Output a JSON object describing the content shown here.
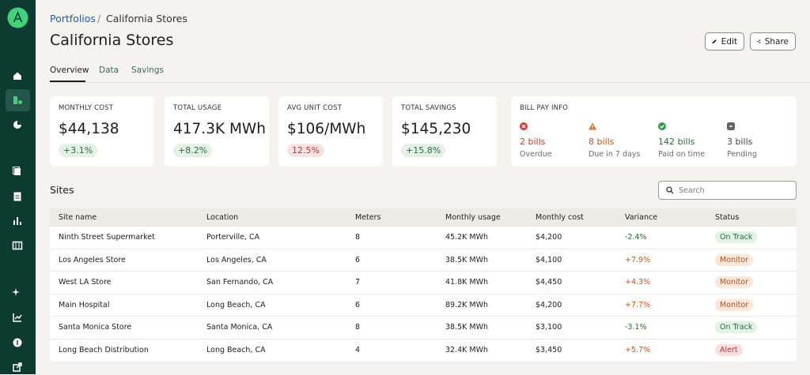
{
  "breadcrumb": {
    "parent": "Portfolios",
    "current": "California Stores"
  },
  "header": {
    "title": "California Stores",
    "edit": "Edit",
    "share": "Share"
  },
  "tabs": [
    "Overview",
    "Data",
    "Savings"
  ],
  "kpis": [
    {
      "label": "MONTHLY COST",
      "value": "$44,138",
      "change": "+3.1%",
      "change_color": "#2f6b3f",
      "change_bg": "#e4f1e6"
    },
    {
      "label": "TOTAL USAGE",
      "value": "417.3K MWh",
      "change": "+8.2%",
      "change_color": "#2f6b3f",
      "change_bg": "#e4f1e6"
    },
    {
      "label": "AVG UNIT COST",
      "value": "$106/MWh",
      "change": "12.5%",
      "change_color": "#b3363a",
      "change_bg": "#f8e3e3"
    },
    {
      "label": "TOTAL SAVINGS",
      "value": "$145,230",
      "change": "+15.8%",
      "change_color": "#2f6b3f",
      "change_bg": "#e4f1e6"
    }
  ],
  "bill_pay": {
    "title": "BILL PAY INFO",
    "items": [
      {
        "count": "2 bills",
        "label": "Overdue",
        "color": "#c0392b",
        "icon_color": "#d33a3a"
      },
      {
        "count": "8 bills",
        "label": "Due in 7 days",
        "color": "#c0561d",
        "icon_color": "#e0702a"
      },
      {
        "count": "142 bills",
        "label": "Paid on time",
        "color": "#2f6b3f",
        "icon_color": "#2e9c4d"
      },
      {
        "count": "3 bills",
        "label": "Pending",
        "color": "#444",
        "icon_color": "#5c6660"
      }
    ]
  },
  "sites": {
    "title": "Sites",
    "search_placeholder": "Search",
    "columns": [
      "Site name",
      "Location",
      "Meters",
      "Monthly usage",
      "Monthly cost",
      "Variance",
      "Status"
    ],
    "rows": [
      [
        "Ninth Street Supermarket",
        "Porterville, CA",
        "8",
        "45.2K MWh",
        "$4,200",
        "-2.4%",
        "On Track"
      ],
      [
        "Los Angeles Store",
        "Los Angeles, CA",
        "6",
        "38.5K MWh",
        "$4,100",
        "+7.9%",
        "Monitor"
      ],
      [
        "West LA Store",
        "San Fernando, CA",
        "7",
        "41.8K MWh",
        "$4,450",
        "+4.3%",
        "Monitor"
      ],
      [
        "Main Hospital",
        "Long Beach, CA",
        "6",
        "89.2K MWh",
        "$4,200",
        "+7.7%",
        "Monitor"
      ],
      [
        "Santa Monica Store",
        "Santa Monica, CA",
        "8",
        "38.5K MWh",
        "$3,100",
        "-3.1%",
        "On Track"
      ],
      [
        "Long Beach Distribution",
        "Long Beach, CA",
        "4",
        "32.4K MWh",
        "$3,450",
        "+5.7%",
        "Alert"
      ]
    ],
    "status_styles": {
      "On Track": {
        "bg": "#e2f2e5",
        "fg": "#2f6b3f"
      },
      "Monitor": {
        "bg": "#fbe7d9",
        "fg": "#b5501c"
      },
      "Alert": {
        "bg": "#f9e0e0",
        "fg": "#b3363a"
      }
    },
    "variance_colors": {
      "positive": "#c0561d",
      "negative": "#2f6b3f"
    }
  }
}
